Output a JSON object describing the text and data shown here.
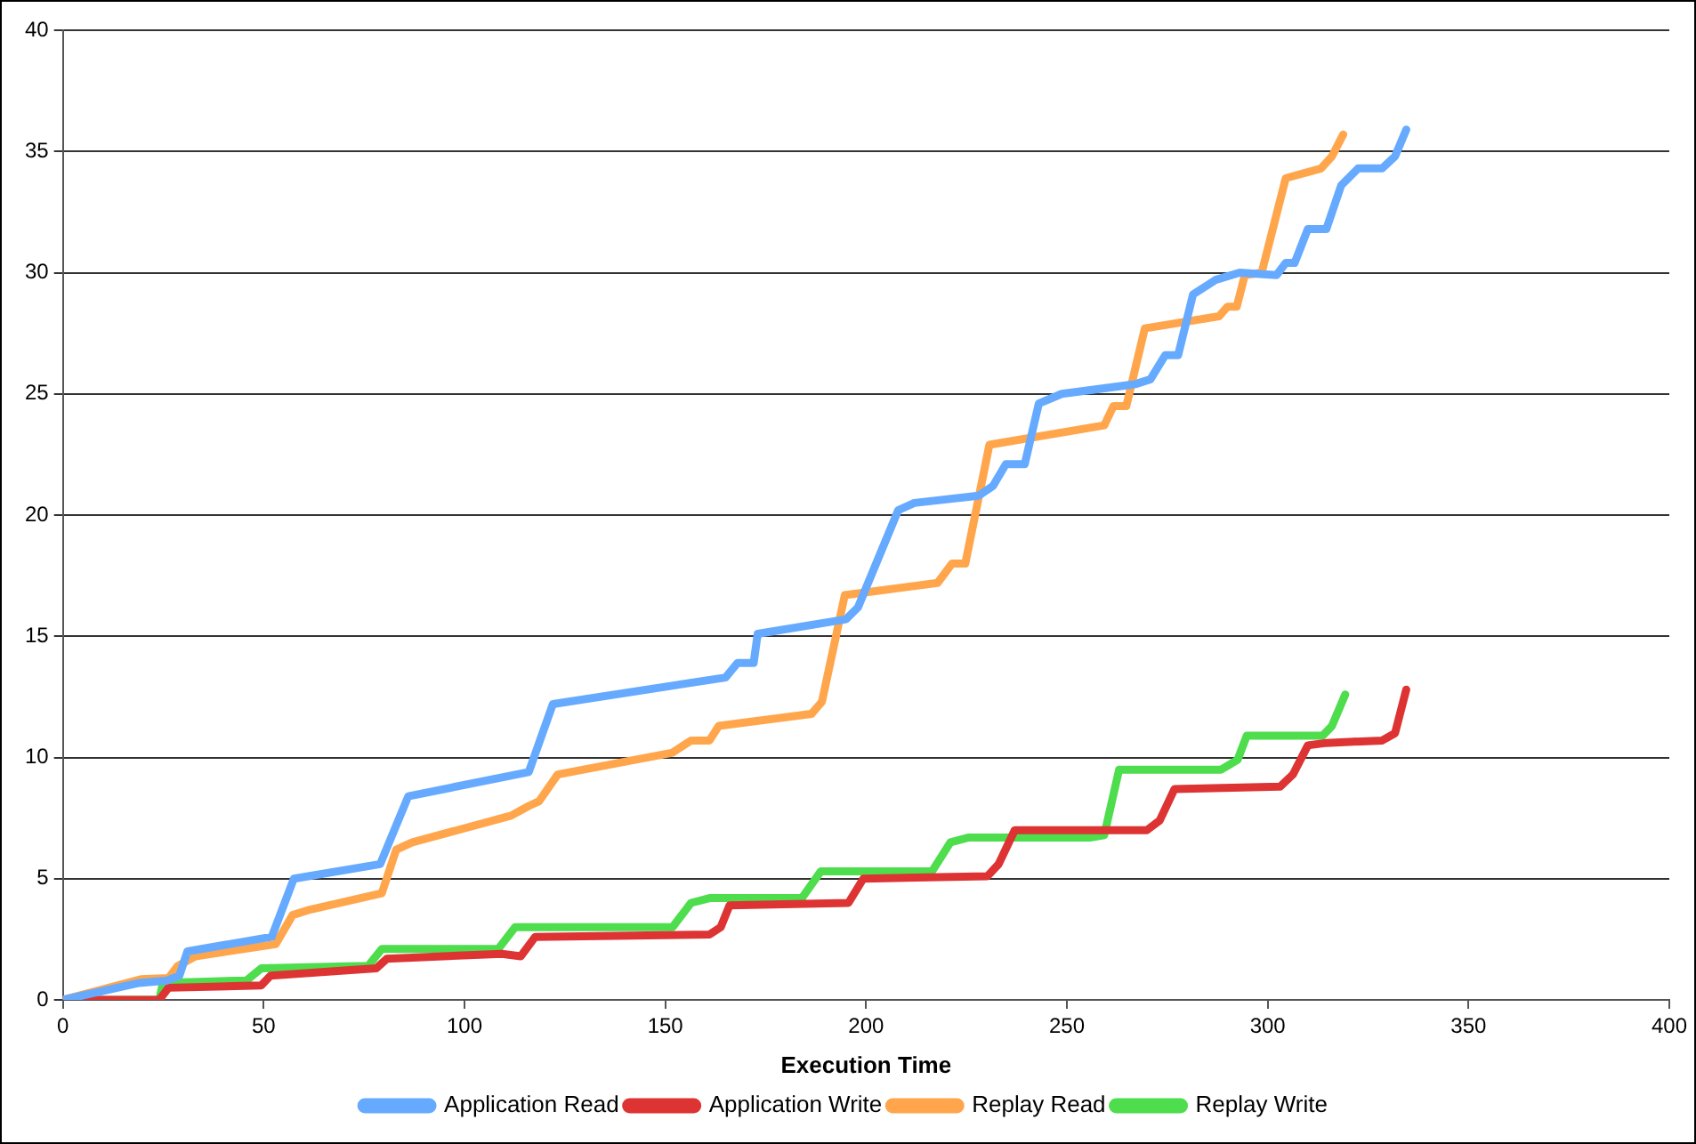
{
  "chart_data": {
    "type": "line",
    "xlabel": "Execution Time",
    "xlim": [
      0,
      400
    ],
    "xticks": [
      0,
      50,
      100,
      150,
      200,
      250,
      300,
      350,
      400
    ],
    "ylim": [
      0,
      40
    ],
    "yticks": [
      0,
      5,
      10,
      15,
      20,
      25,
      30,
      35,
      40
    ],
    "grid": "y",
    "legend": "bottom",
    "marker": "none",
    "line_style": "solid",
    "series": [
      {
        "name": "Application Read",
        "color": "#66aaff",
        "x": [
          0,
          19,
          26,
          29,
          31,
          52,
          57.5,
          79,
          86,
          116,
          122,
          165,
          168,
          172,
          173,
          195,
          198,
          208,
          212,
          228,
          231.6,
          234.8,
          239.5,
          243,
          248.7,
          267,
          270.8,
          274.5,
          277.7,
          281.4,
          287,
          293,
          302.2,
          304.5,
          306.7,
          310,
          314.6,
          318.3,
          322.5,
          328.5,
          331.7,
          334.5
        ],
        "values": [
          0,
          0.7,
          0.8,
          1,
          2,
          2.6,
          5,
          5.6,
          8.4,
          9.4,
          12.2,
          13.3,
          13.9,
          13.9,
          15.1,
          15.7,
          16.2,
          20.2,
          20.5,
          20.8,
          21.2,
          22.1,
          22.1,
          24.6,
          25,
          25.4,
          25.6,
          26.6,
          26.6,
          29.1,
          29.7,
          30,
          29.9,
          30.4,
          30.4,
          31.8,
          31.8,
          33.6,
          34.3,
          34.3,
          34.8,
          35.9
        ]
      },
      {
        "name": "Application Write",
        "color": "#dd3333",
        "x": [
          0,
          24,
          26.3,
          49.4,
          51.7,
          78,
          80.7,
          109.3,
          114,
          117.6,
          161,
          163.8,
          166,
          195.6,
          199.3,
          230.2,
          233,
          237,
          269.9,
          273.1,
          276.8,
          303.1,
          306.3,
          310,
          314.6,
          328.5,
          331.7,
          334.5
        ],
        "values": [
          0,
          0,
          0.5,
          0.6,
          1,
          1.3,
          1.7,
          1.9,
          1.8,
          2.6,
          2.7,
          3,
          3.9,
          4,
          5,
          5.1,
          5.6,
          7,
          7,
          7.4,
          8.7,
          8.8,
          9.3,
          10.5,
          10.6,
          10.7,
          11,
          12.8
        ]
      },
      {
        "name": "Replay Read",
        "color": "#ffa64d",
        "x": [
          0,
          19.4,
          26.3,
          28.6,
          33,
          53,
          57.2,
          61,
          79.4,
          83,
          87,
          111.6,
          116,
          118.6,
          123.2,
          151.8,
          156.4,
          161,
          163.3,
          186.4,
          189,
          194.7,
          217.8,
          221.4,
          224.7,
          230.7,
          259.3,
          261.6,
          264.8,
          269.4,
          287.9,
          290,
          292.3,
          294.3,
          298.5,
          304.5,
          313.3,
          316,
          318.8
        ],
        "values": [
          0,
          0.85,
          0.9,
          1.4,
          1.8,
          2.3,
          3.5,
          3.7,
          4.4,
          6.2,
          6.5,
          7.6,
          8,
          8.2,
          9.3,
          10.2,
          10.7,
          10.7,
          11.3,
          11.8,
          12.3,
          16.7,
          17.2,
          18,
          18,
          22.9,
          23.7,
          24.5,
          24.5,
          27.7,
          28.2,
          28.6,
          28.6,
          29.9,
          30,
          33.9,
          34.3,
          34.8,
          35.7
        ]
      },
      {
        "name": "Replay Write",
        "color": "#4ddd4d",
        "x": [
          0,
          24,
          24.9,
          45.7,
          49.4,
          76,
          79.4,
          108.4,
          112.6,
          151.8,
          156.4,
          161,
          184,
          188.7,
          216.4,
          221,
          225.6,
          256,
          259.3,
          263,
          288.4,
          292.5,
          294.8,
          313.7,
          316,
          319.3
        ],
        "values": [
          0,
          0,
          0.7,
          0.8,
          1.3,
          1.4,
          2.1,
          2.1,
          3,
          3,
          4,
          4.2,
          4.2,
          5.3,
          5.3,
          6.5,
          6.7,
          6.7,
          6.8,
          9.5,
          9.5,
          9.9,
          10.9,
          10.9,
          11.3,
          12.6
        ]
      }
    ]
  }
}
